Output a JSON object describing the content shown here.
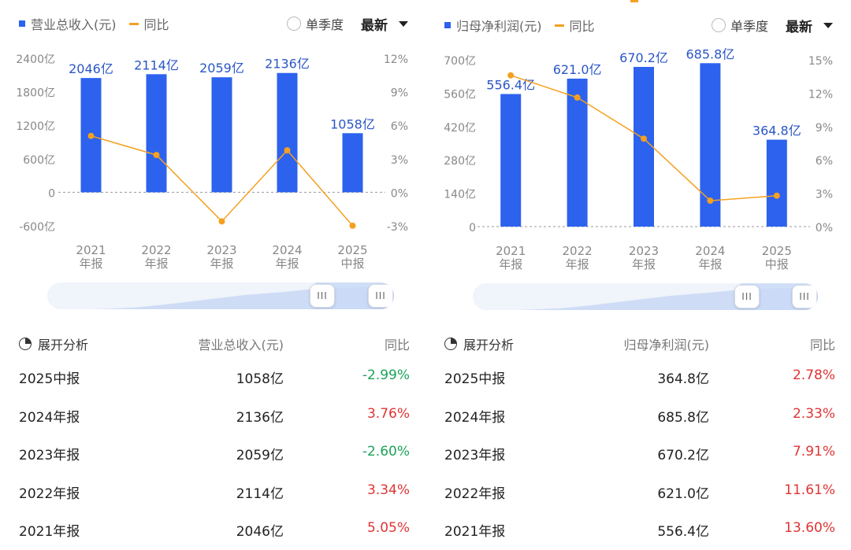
{
  "left": {
    "legend_bar": "营业总收入(元)",
    "legend_line": "同比",
    "toggle_label": "单季度",
    "select_value": "最新",
    "table_header": {
      "expand": "展开分析",
      "metric": "营业总收入(元)",
      "yoy": "同比"
    },
    "rows": [
      {
        "period": "2025中报",
        "value": "1058亿",
        "yoy": "-2.99%",
        "sign": "neg"
      },
      {
        "period": "2024年报",
        "value": "2136亿",
        "yoy": "3.76%",
        "sign": "pos"
      },
      {
        "period": "2023年报",
        "value": "2059亿",
        "yoy": "-2.60%",
        "sign": "neg"
      },
      {
        "period": "2022年报",
        "value": "2114亿",
        "yoy": "3.34%",
        "sign": "pos"
      },
      {
        "period": "2021年报",
        "value": "2046亿",
        "yoy": "5.05%",
        "sign": "pos"
      }
    ]
  },
  "right": {
    "legend_bar": "归母净利润(元)",
    "legend_line": "同比",
    "toggle_label": "单季度",
    "select_value": "最新",
    "table_header": {
      "expand": "展开分析",
      "metric": "归母净利润(元)",
      "yoy": "同比"
    },
    "rows": [
      {
        "period": "2025中报",
        "value": "364.8亿",
        "yoy": "2.78%",
        "sign": "pos"
      },
      {
        "period": "2024年报",
        "value": "685.8亿",
        "yoy": "2.33%",
        "sign": "pos"
      },
      {
        "period": "2023年报",
        "value": "670.2亿",
        "yoy": "7.91%",
        "sign": "pos"
      },
      {
        "period": "2022年报",
        "value": "621.0亿",
        "yoy": "11.61%",
        "sign": "pos"
      },
      {
        "period": "2021年报",
        "value": "556.4亿",
        "yoy": "13.60%",
        "sign": "pos"
      }
    ]
  },
  "colors": {
    "bar": "#2c62ee",
    "line": "#f5a021",
    "pos": "#e03434",
    "neg": "#1ba35a"
  },
  "chart_data": [
    {
      "type": "bar",
      "categories": [
        [
          "2021",
          "年报"
        ],
        [
          "2022",
          "年报"
        ],
        [
          "2023",
          "年报"
        ],
        [
          "2024",
          "年报"
        ],
        [
          "2025",
          "中报"
        ]
      ],
      "series": [
        {
          "name": "营业总收入(元)",
          "values": [
            2046,
            2114,
            2059,
            2136,
            1058
          ],
          "labels": [
            "2046亿",
            "2114亿",
            "2059亿",
            "2136亿",
            "1058亿"
          ]
        },
        {
          "name": "同比",
          "type": "line",
          "values": [
            5.05,
            3.34,
            -2.6,
            3.76,
            -2.99
          ]
        }
      ],
      "left_ticks": [
        "2400亿",
        "1800亿",
        "1200亿",
        "600亿",
        "0",
        "-600亿"
      ],
      "right_ticks": [
        "12%",
        "9%",
        "6%",
        "3%",
        "0%",
        "-3%"
      ],
      "ylim": [
        -600,
        2400
      ],
      "y2lim": [
        -3,
        12
      ]
    },
    {
      "type": "bar",
      "categories": [
        [
          "2021",
          "年报"
        ],
        [
          "2022",
          "年报"
        ],
        [
          "2023",
          "年报"
        ],
        [
          "2024",
          "年报"
        ],
        [
          "2025",
          "中报"
        ]
      ],
      "series": [
        {
          "name": "归母净利润(元)",
          "values": [
            556.4,
            621.0,
            670.2,
            685.8,
            364.8
          ],
          "labels": [
            "556.4亿",
            "621.0亿",
            "670.2亿",
            "685.8亿",
            "364.8亿"
          ]
        },
        {
          "name": "同比",
          "type": "line",
          "values": [
            13.6,
            11.61,
            7.91,
            2.33,
            2.78
          ]
        }
      ],
      "left_ticks": [
        "700亿",
        "560亿",
        "420亿",
        "280亿",
        "140亿",
        "0"
      ],
      "right_ticks": [
        "15%",
        "12%",
        "9%",
        "6%",
        "3%",
        "0%"
      ],
      "ylim": [
        0,
        700
      ],
      "y2lim": [
        0,
        15
      ]
    }
  ]
}
